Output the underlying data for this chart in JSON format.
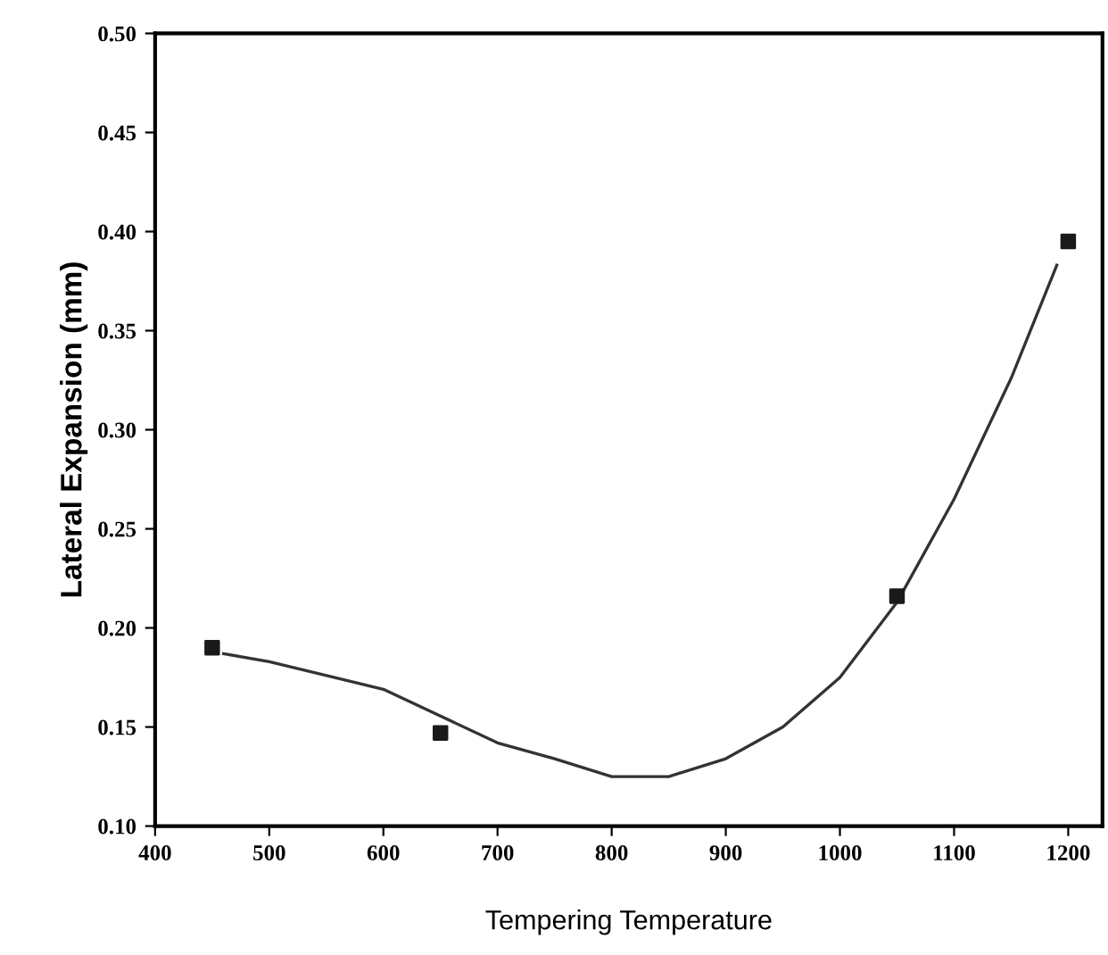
{
  "chart_data": {
    "type": "scatter",
    "xlabel": "Tempering Temperature",
    "ylabel": "Lateral Expansion (mm)",
    "xlim": [
      400,
      1230
    ],
    "xticks": [
      400,
      500,
      600,
      700,
      800,
      900,
      1000,
      1100,
      1200
    ],
    "ylim": [
      0.1,
      0.5
    ],
    "yticks": [
      {
        "value": 0.1,
        "label": "0.10"
      },
      {
        "value": 0.15,
        "label": "0.15"
      },
      {
        "value": 0.2,
        "label": "0.20"
      },
      {
        "value": 0.25,
        "label": "0.25"
      },
      {
        "value": 0.3,
        "label": "0.30"
      },
      {
        "value": 0.35,
        "label": "0.35"
      },
      {
        "value": 0.4,
        "label": "0.40"
      },
      {
        "value": 0.45,
        "label": "0.45"
      },
      {
        "value": 0.5,
        "label": "0.50"
      }
    ],
    "grid": false,
    "series": [
      {
        "color": "#1a1a1a",
        "marker": "square",
        "x": [
          450,
          650,
          1050,
          1200
        ],
        "values": [
          0.19,
          0.147,
          0.216,
          0.395
        ]
      },
      {
        "type": "line",
        "color": "#333333",
        "marker": "none",
        "line_style": "solid",
        "x": [
          460,
          500,
          600,
          700,
          750,
          800,
          850,
          900,
          950,
          1000,
          1050,
          1100,
          1150,
          1190
        ],
        "values": [
          0.187,
          0.183,
          0.169,
          0.142,
          0.134,
          0.125,
          0.125,
          0.134,
          0.15,
          0.175,
          0.213,
          0.265,
          0.326,
          0.383
        ]
      }
    ]
  }
}
